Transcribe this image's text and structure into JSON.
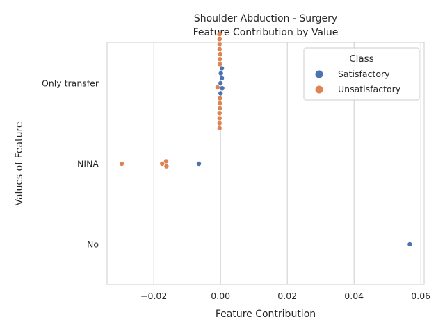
{
  "chart_data": {
    "type": "scatter",
    "title_lines": [
      "Shoulder Abduction - Surgery",
      "Feature Contribution by Value"
    ],
    "xlabel": "Feature Contribution",
    "ylabel": "Values of Feature",
    "xlim": [
      -0.034,
      0.061
    ],
    "x_ticks": [
      -0.02,
      0.0,
      0.02,
      0.04,
      0.06
    ],
    "x_tick_labels": [
      "−0.02",
      "0.00",
      "0.02",
      "0.04",
      "0.06"
    ],
    "categories": [
      "Only transfer",
      "NINA",
      "No"
    ],
    "grid": "vertical",
    "legend": {
      "title": "Class",
      "position": "top-right",
      "entries": [
        "Satisfactory",
        "Unsatisfactory"
      ]
    },
    "series": [
      {
        "name": "Satisfactory",
        "color": "#4c72b0",
        "points": [
          {
            "category": "Only transfer",
            "x": 0.0
          },
          {
            "category": "Only transfer",
            "x": 0.0004
          },
          {
            "category": "Only transfer",
            "x": 0.0005
          },
          {
            "category": "Only transfer",
            "x": 0.0001
          },
          {
            "category": "Only transfer",
            "x": 0.0
          },
          {
            "category": "Only transfer",
            "x": 0.0004
          },
          {
            "category": "NINA",
            "x": -0.0065
          },
          {
            "category": "No",
            "x": 0.0567
          }
        ]
      },
      {
        "name": "Unsatisfactory",
        "color": "#dd8452",
        "points": [
          {
            "category": "Only transfer",
            "x": -0.0002
          },
          {
            "category": "Only transfer",
            "x": -0.0002
          },
          {
            "category": "Only transfer",
            "x": -0.0002
          },
          {
            "category": "Only transfer",
            "x": -0.0002
          },
          {
            "category": "Only transfer",
            "x": -0.0002
          },
          {
            "category": "Only transfer",
            "x": -0.0001
          },
          {
            "category": "Only transfer",
            "x": -0.0003
          },
          {
            "category": "Only transfer",
            "x": -0.0009
          },
          {
            "category": "Only transfer",
            "x": -0.0003
          },
          {
            "category": "Only transfer",
            "x": -0.0003
          },
          {
            "category": "Only transfer",
            "x": -0.0003
          },
          {
            "category": "Only transfer",
            "x": -0.0003
          },
          {
            "category": "Only transfer",
            "x": -0.0003
          },
          {
            "category": "Only transfer",
            "x": -0.0003
          },
          {
            "category": "Only transfer",
            "x": -0.0003
          },
          {
            "category": "NINA",
            "x": -0.0296
          },
          {
            "category": "NINA",
            "x": -0.0175
          },
          {
            "category": "NINA",
            "x": -0.0163
          },
          {
            "category": "NINA",
            "x": -0.0162
          }
        ]
      }
    ]
  }
}
